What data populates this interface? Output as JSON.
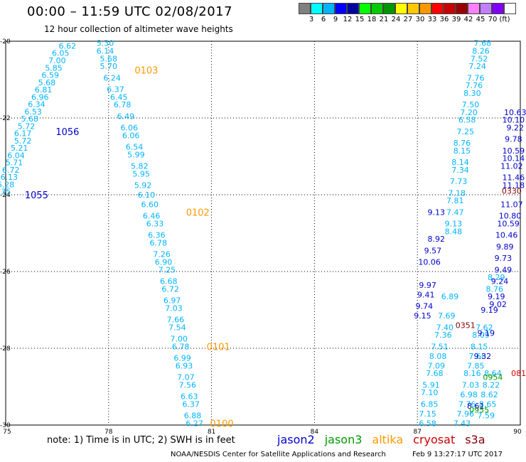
{
  "header": {
    "title": "00:00 – 11:59 UTC 02/08/2017",
    "subtitle": "12 hour collection of altimeter wave heights"
  },
  "colors": {
    "scale_swatches": [
      "#808080",
      "#00ffff",
      "#00b4ff",
      "#0000ff",
      "#0000a0",
      "#00ff00",
      "#00cc00",
      "#009600",
      "#ffff00",
      "#ffc800",
      "#ff9600",
      "#ff0000",
      "#c80000",
      "#960000",
      "#ff80ff",
      "#c080ff",
      "#8000ff",
      "#ffffff"
    ],
    "jason2": "#0000cc",
    "jason3": "#009900",
    "altika": "#ff9900",
    "cryosat": "#cc0000",
    "s3a": "#800000"
  },
  "scale": {
    "labels": [
      "3",
      "6",
      "9",
      "12",
      "15",
      "18",
      "21",
      "24",
      "27",
      "30",
      "33",
      "36",
      "39",
      "42",
      "45",
      "70",
      "(ft)"
    ]
  },
  "footer": {
    "note": "note: 1) Time is in UTC; 2) SWH is in feet",
    "credit": "NOAA/NESDIS Center for Satellite Applications and Research",
    "timestamp": "Feb  9 13:27:17 UTC 2017"
  },
  "legend": [
    "jason2",
    "jason3",
    "altika",
    "cryosat",
    "s3a"
  ],
  "chart_data": {
    "type": "scatter",
    "xlim": [
      75,
      90
    ],
    "ylim": [
      -30,
      -20
    ],
    "x_ticks": [
      "75",
      "78",
      "81",
      "84",
      "87",
      "90"
    ],
    "y_ticks": [
      "-20",
      "-22",
      "-24",
      "-26",
      "-28",
      "-30"
    ],
    "grid": true,
    "series": [
      {
        "name": "altika",
        "color": "#00b4ff",
        "points": [
          [
            76.8,
            -20.12,
            "6.62"
          ],
          [
            76.6,
            -20.31,
            "6.05"
          ],
          [
            76.5,
            -20.5,
            "7.00"
          ],
          [
            76.4,
            -20.69,
            "5.85"
          ],
          [
            76.3,
            -20.88,
            "6.59"
          ],
          [
            76.2,
            -21.07,
            "5.68"
          ],
          [
            76.1,
            -21.26,
            "6.81"
          ],
          [
            76.0,
            -21.45,
            "6.96"
          ],
          [
            75.9,
            -21.64,
            "6.34"
          ],
          [
            75.8,
            -21.83,
            "6.53"
          ],
          [
            75.7,
            -22.02,
            "5.68"
          ],
          [
            75.6,
            -22.21,
            "5.72"
          ],
          [
            75.5,
            -22.4,
            "6.17"
          ],
          [
            75.5,
            -22.59,
            "5.72"
          ],
          [
            75.4,
            -22.78,
            "5.21"
          ],
          [
            75.3,
            -22.97,
            "6.04"
          ],
          [
            75.25,
            -23.16,
            "5.71"
          ],
          [
            75.15,
            -23.35,
            "6.72"
          ],
          [
            75.1,
            -23.54,
            "6.13"
          ],
          [
            75.0,
            -23.73,
            "6.28"
          ],
          [
            74.9,
            -23.92,
            "7.35"
          ],
          [
            77.9,
            -20.05,
            "5.30"
          ],
          [
            77.9,
            -20.25,
            "6.14"
          ],
          [
            78.0,
            -20.45,
            "5.68"
          ],
          [
            78.0,
            -20.65,
            "5.70"
          ],
          [
            78.1,
            -20.95,
            "6.24"
          ],
          [
            78.2,
            -21.25,
            "6.37"
          ],
          [
            78.3,
            -21.45,
            "6.45"
          ],
          [
            78.4,
            -21.65,
            "6.78"
          ],
          [
            78.5,
            -21.95,
            "6.49"
          ],
          [
            78.6,
            -22.25,
            "6.06"
          ],
          [
            78.65,
            -22.45,
            "6.06"
          ],
          [
            78.75,
            -22.75,
            "6.54"
          ],
          [
            78.8,
            -22.95,
            "5.99"
          ],
          [
            78.9,
            -23.25,
            "5.82"
          ],
          [
            78.95,
            -23.45,
            "5.95"
          ],
          [
            79.0,
            -23.75,
            "5.92"
          ],
          [
            79.1,
            -24.0,
            "6.10"
          ],
          [
            79.2,
            -24.25,
            "6.60"
          ],
          [
            79.25,
            -24.55,
            "6.46"
          ],
          [
            79.35,
            -24.75,
            "6.33"
          ],
          [
            79.4,
            -25.05,
            "6.36"
          ],
          [
            79.45,
            -25.25,
            "6.78"
          ],
          [
            79.55,
            -25.55,
            "7.26"
          ],
          [
            79.6,
            -25.75,
            "6.90"
          ],
          [
            79.7,
            -25.95,
            "7.25"
          ],
          [
            79.75,
            -26.25,
            "6.68"
          ],
          [
            79.8,
            -26.45,
            "6.72"
          ],
          [
            79.85,
            -26.75,
            "6.97"
          ],
          [
            79.9,
            -26.95,
            "7.03"
          ],
          [
            79.95,
            -27.25,
            "7.66"
          ],
          [
            80.0,
            -27.45,
            "7.54"
          ],
          [
            80.05,
            -27.75,
            "7.00"
          ],
          [
            80.1,
            -27.95,
            "6.78"
          ],
          [
            80.15,
            -28.25,
            "6.99"
          ],
          [
            80.2,
            -28.45,
            "6.93"
          ],
          [
            80.25,
            -28.75,
            "7.07"
          ],
          [
            80.3,
            -28.95,
            "7.56"
          ],
          [
            80.35,
            -29.25,
            "6.63"
          ],
          [
            80.4,
            -29.45,
            "6.37"
          ],
          [
            80.45,
            -29.75,
            "6.88"
          ],
          [
            80.5,
            -29.95,
            "6.27"
          ],
          [
            87.3,
            -29.95,
            "6.58"
          ],
          [
            87.3,
            -29.7,
            "7.15"
          ],
          [
            87.35,
            -29.45,
            "6.85"
          ],
          [
            87.35,
            -29.15,
            "7.10"
          ],
          [
            87.4,
            -28.95,
            "5.91"
          ],
          [
            87.5,
            -28.65,
            "7.68"
          ],
          [
            87.55,
            -28.45,
            "7.09"
          ],
          [
            87.6,
            -28.2,
            "8.08"
          ],
          [
            87.65,
            -27.95,
            "7.51"
          ],
          [
            87.75,
            -27.65,
            "7.36"
          ],
          [
            87.8,
            -27.45,
            "7.40"
          ],
          [
            87.85,
            -27.15,
            "7.69"
          ],
          [
            87.95,
            -26.65,
            "6.89"
          ],
          [
            88.05,
            -24.95,
            "8.48"
          ],
          [
            88.05,
            -24.75,
            "9.13"
          ],
          [
            88.1,
            -24.45,
            "7.47"
          ],
          [
            88.1,
            -24.15,
            "7.81"
          ],
          [
            88.15,
            -23.95,
            "7.18"
          ],
          [
            88.2,
            -23.65,
            "7.73"
          ],
          [
            88.25,
            -23.35,
            "7.34"
          ],
          [
            88.25,
            -23.15,
            "8.14"
          ],
          [
            88.3,
            -22.85,
            "8.15"
          ],
          [
            88.3,
            -22.65,
            "8.76"
          ],
          [
            88.4,
            -22.35,
            "7.25"
          ],
          [
            88.45,
            -22.05,
            "6.58"
          ],
          [
            88.5,
            -21.85,
            "7.20"
          ],
          [
            88.55,
            -21.65,
            "7.50"
          ],
          [
            88.6,
            -21.35,
            "8.30"
          ],
          [
            88.65,
            -21.15,
            "7.76"
          ],
          [
            88.7,
            -20.95,
            "7.76"
          ],
          [
            88.75,
            -20.65,
            "7.24"
          ],
          [
            88.8,
            -20.45,
            "7.52"
          ],
          [
            88.85,
            -20.25,
            "8.26"
          ],
          [
            88.9,
            -20.05,
            "7.68"
          ],
          [
            88.3,
            -29.95,
            "7.43"
          ],
          [
            88.4,
            -29.7,
            "7.96"
          ],
          [
            88.45,
            -29.45,
            "7.76"
          ],
          [
            88.5,
            -29.2,
            "6.98"
          ],
          [
            88.55,
            -28.95,
            "7.03"
          ],
          [
            88.6,
            -28.65,
            "8.16"
          ],
          [
            88.7,
            -28.45,
            "7.85"
          ],
          [
            88.75,
            -28.2,
            "7.68"
          ],
          [
            88.8,
            -27.95,
            "8.15"
          ],
          [
            88.85,
            -27.65,
            "8.09"
          ],
          [
            88.95,
            -27.45,
            "7.62"
          ],
          [
            89.0,
            -29.75,
            "7.59"
          ],
          [
            89.05,
            -29.45,
            "8.65"
          ],
          [
            89.1,
            -29.2,
            "8.62"
          ],
          [
            89.15,
            -28.95,
            "8.22"
          ],
          [
            89.2,
            -28.65,
            "8.64"
          ],
          [
            89.25,
            -26.45,
            "8.76"
          ],
          [
            89.3,
            -26.15,
            "8.29"
          ]
        ]
      },
      {
        "name": "jason2",
        "color": "#0000cc",
        "points": [
          [
            88.7,
            -29.5,
            "8.61"
          ],
          [
            88.9,
            -28.2,
            "9.32"
          ],
          [
            89.0,
            -27.6,
            "9.19"
          ],
          [
            89.1,
            -27.0,
            "9.19"
          ],
          [
            89.3,
            -26.65,
            "9.19"
          ],
          [
            89.35,
            -26.85,
            "9.02"
          ],
          [
            89.4,
            -26.25,
            "9.24"
          ],
          [
            89.5,
            -25.95,
            "9.49"
          ],
          [
            89.5,
            -25.65,
            "9.73"
          ],
          [
            89.55,
            -25.35,
            "9.89"
          ],
          [
            89.6,
            -25.05,
            "10.46"
          ],
          [
            89.65,
            -24.75,
            "10.59"
          ],
          [
            89.7,
            -24.55,
            "10.80"
          ],
          [
            89.75,
            -24.25,
            "11.07"
          ],
          [
            89.8,
            -23.75,
            "11.18"
          ],
          [
            89.8,
            -23.55,
            "11.46"
          ],
          [
            89.75,
            -23.25,
            "11.02"
          ],
          [
            89.8,
            -23.05,
            "10.14"
          ],
          [
            89.8,
            -22.85,
            "10.59"
          ],
          [
            89.8,
            -22.55,
            "9.78"
          ],
          [
            89.85,
            -22.25,
            "9.22"
          ],
          [
            89.8,
            -22.05,
            "10.10"
          ],
          [
            89.85,
            -21.85,
            "10.63"
          ],
          [
            87.55,
            -24.45,
            "9.13"
          ],
          [
            87.55,
            -25.15,
            "8.92"
          ],
          [
            87.45,
            -25.45,
            "9.57"
          ],
          [
            87.35,
            -25.75,
            "10.06"
          ],
          [
            87.3,
            -26.35,
            "9.97"
          ],
          [
            87.25,
            -26.6,
            "9.41"
          ],
          [
            87.2,
            -26.9,
            "9.74"
          ],
          [
            87.15,
            -27.15,
            "9.15"
          ]
        ]
      },
      {
        "name": "jason3",
        "color": "#009900",
        "points": [
          [
            88.8,
            -29.6,
            "0955"
          ],
          [
            89.2,
            -28.75,
            "0954"
          ]
        ]
      },
      {
        "name": "cryosat",
        "color": "#cc0000",
        "points": [
          [
            89.95,
            -28.65,
            "081"
          ]
        ]
      },
      {
        "name": "s3a",
        "color": "#800000",
        "points": [
          [
            89.75,
            -23.9,
            "0330"
          ],
          [
            88.4,
            -27.4,
            "0351"
          ]
        ]
      }
    ],
    "time_labels": [
      {
        "x": 79.1,
        "y": -20.75,
        "text": "0103",
        "color": "#ff9900"
      },
      {
        "x": 76.8,
        "y": -22.35,
        "text": "1056",
        "color": "#0000cc"
      },
      {
        "x": 75.9,
        "y": -24.0,
        "text": "1055",
        "color": "#0000cc"
      },
      {
        "x": 80.6,
        "y": -24.45,
        "text": "0102",
        "color": "#ff9900"
      },
      {
        "x": 81.2,
        "y": -27.95,
        "text": "0101",
        "color": "#ff9900"
      },
      {
        "x": 81.3,
        "y": -29.95,
        "text": "0100",
        "color": "#ff9900"
      }
    ]
  }
}
